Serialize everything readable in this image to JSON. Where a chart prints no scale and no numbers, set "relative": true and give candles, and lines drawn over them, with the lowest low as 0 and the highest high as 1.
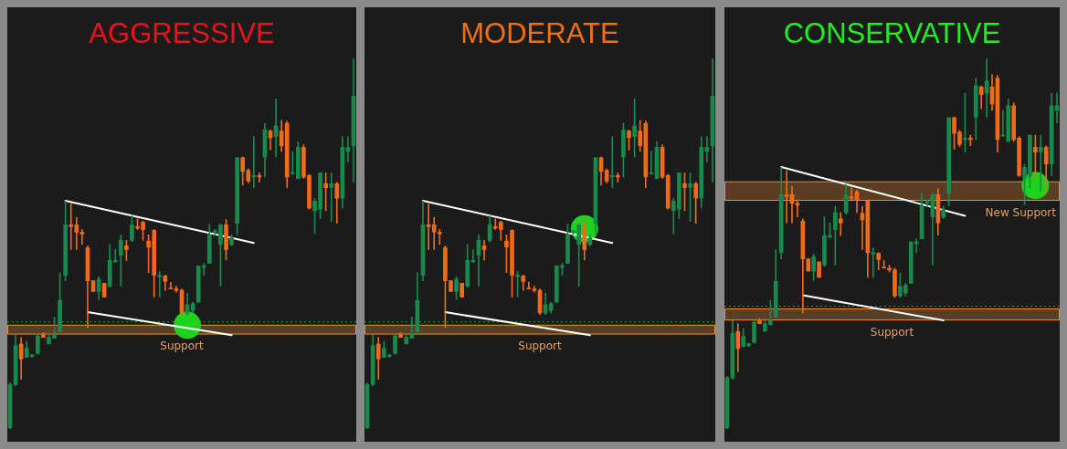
{
  "chart_data": [
    {
      "type": "candlestick",
      "title": "AGGRESSIVE",
      "relative": true,
      "tick_labels": false,
      "grid": false,
      "legend": false,
      "categories": [
        null,
        null,
        null,
        null,
        null,
        null,
        null,
        null,
        null,
        null,
        null,
        null,
        null,
        null,
        null,
        null,
        null,
        null,
        null,
        null,
        null,
        null,
        null,
        null,
        null,
        null,
        null,
        null,
        null,
        null,
        null,
        null,
        null,
        null,
        null,
        null,
        null,
        null,
        null,
        null,
        null,
        null,
        null,
        null,
        null,
        null,
        null,
        null,
        null,
        null,
        null,
        null,
        null,
        null,
        null,
        null,
        null,
        null,
        null,
        null,
        null,
        null,
        null
      ],
      "ohlc": [
        [
          0.003,
          0.124,
          0,
          0.12
        ],
        [
          0.12,
          0.254,
          0.116,
          0.225
        ],
        [
          0.229,
          0.247,
          0.134,
          0.189
        ],
        [
          0.193,
          0.236,
          0.193,
          0.218
        ],
        [
          0.196,
          0.201,
          0.193,
          0.2
        ],
        [
          0.204,
          0.254,
          0.201,
          0.251
        ],
        [
          0.254,
          0.26,
          0.247,
          0.247
        ],
        [
          0.23,
          0.254,
          0.229,
          0.247
        ],
        [
          0.245,
          0.302,
          0.245,
          0.256
        ],
        [
          0.262,
          0.422,
          0.262,
          0.347
        ],
        [
          0.415,
          0.615,
          0.4,
          0.551
        ],
        [
          0.551,
          0.607,
          0.484,
          0.546
        ],
        [
          0.551,
          0.571,
          0.484,
          0.531
        ],
        [
          0.531,
          0.538,
          0.498,
          0.526
        ],
        [
          0.489,
          0.494,
          0.273,
          0.4
        ],
        [
          0.4,
          0.4,
          0.371,
          0.371
        ],
        [
          0.371,
          0.411,
          0.349,
          0.404
        ],
        [
          0.393,
          0.393,
          0.356,
          0.356
        ],
        [
          0.385,
          0.498,
          0.382,
          0.455
        ],
        [
          0.451,
          0.484,
          0.449,
          0.455
        ],
        [
          0.469,
          0.524,
          0.385,
          0.509
        ],
        [
          0.494,
          0.509,
          0.455,
          0.484
        ],
        [
          0.509,
          0.575,
          0.505,
          0.551
        ],
        [
          0.546,
          0.567,
          0.538,
          0.542
        ],
        [
          0.558,
          0.561,
          0.509,
          0.538
        ],
        [
          0.507,
          0.524,
          0.422,
          0.491
        ],
        [
          0.536,
          0.538,
          0.356,
          0.415
        ],
        [
          0.411,
          0.425,
          0.356,
          0.415
        ],
        [
          0.413,
          0.415,
          0.374,
          0.398
        ],
        [
          0.38,
          0.396,
          0.378,
          0.378
        ],
        [
          0.378,
          0.385,
          0.369,
          0.374
        ],
        [
          0.374,
          0.378,
          0.309,
          0.313
        ],
        [
          0.313,
          0.367,
          0.309,
          0.335
        ],
        [
          0.32,
          0.342,
          0.313,
          0.338
        ],
        [
          0.342,
          0.44,
          0.342,
          0.44
        ],
        [
          0.436,
          0.447,
          0.415,
          0.44
        ],
        [
          0.447,
          0.553,
          0.447,
          0.524
        ],
        [
          0.531,
          0.538,
          0.524,
          0.535
        ],
        [
          0.498,
          0.553,
          0.385,
          0.551
        ],
        [
          0.551,
          0.565,
          0.456,
          0.484
        ],
        [
          0.498,
          0.524,
          0.494,
          0.516
        ],
        [
          0.555,
          0.732,
          0.524,
          0.732
        ],
        [
          0.732,
          0.734,
          0.658,
          0.695
        ],
        [
          0.698,
          0.702,
          0.664,
          0.669
        ],
        [
          0.68,
          0.789,
          0.651,
          0.684
        ],
        [
          0.684,
          0.691,
          0.666,
          0.68
        ],
        [
          0.734,
          0.825,
          0.68,
          0.807
        ],
        [
          0.804,
          0.807,
          0.753,
          0.786
        ],
        [
          0.789,
          0.891,
          0.734,
          0.818
        ],
        [
          0.804,
          0.833,
          0.749,
          0.764
        ],
        [
          0.825,
          0.831,
          0.651,
          0.68
        ],
        [
          0.689,
          0.749,
          0.687,
          0.691
        ],
        [
          0.676,
          0.775,
          0.676,
          0.76
        ],
        [
          0.76,
          0.767,
          0.676,
          0.68
        ],
        [
          0.684,
          0.687,
          0.593,
          0.596
        ],
        [
          0.589,
          0.622,
          0.527,
          0.615
        ],
        [
          0.593,
          0.691,
          0.567,
          0.691
        ],
        [
          0.662,
          0.691,
          0.589,
          0.651
        ],
        [
          0.652,
          0.691,
          0.56,
          0.662
        ],
        [
          0.662,
          0.666,
          0.555,
          0.623
        ],
        [
          0.623,
          0.789,
          0.596,
          0.76
        ],
        [
          0.749,
          0.789,
          0.72,
          0.76
        ],
        [
          0.764,
          1,
          0.666,
          0.898
        ]
      ],
      "colors": [
        "#178a4c",
        "#178a4c",
        "#f06a1a",
        "#178a4c",
        "#178a4c",
        "#178a4c",
        "#f06a1a",
        "#178a4c",
        "#178a4c",
        "#178a4c",
        "#178a4c",
        "#f06a1a",
        "#f06a1a",
        "#f06a1a",
        "#f06a1a",
        "#f06a1a",
        "#178a4c",
        "#f06a1a",
        "#178a4c",
        "#178a4c",
        "#178a4c",
        "#f06a1a",
        "#178a4c",
        "#f06a1a",
        "#f06a1a",
        "#f06a1a",
        "#f06a1a",
        "#178a4c",
        "#f06a1a",
        "#f06a1a",
        "#f06a1a",
        "#f06a1a",
        "#178a4c",
        "#178a4c",
        "#178a4c",
        "#178a4c",
        "#178a4c",
        "#178a4c",
        "#178a4c",
        "#f06a1a",
        "#178a4c",
        "#178a4c",
        "#f06a1a",
        "#f06a1a",
        "#178a4c",
        "#f06a1a",
        "#178a4c",
        "#f06a1a",
        "#178a4c",
        "#f06a1a",
        "#f06a1a",
        "#178a4c",
        "#178a4c",
        "#f06a1a",
        "#f06a1a",
        "#178a4c",
        "#178a4c",
        "#f06a1a",
        "#178a4c",
        "#f06a1a",
        "#178a4c",
        "#178a4c",
        "#178a4c"
      ],
      "series": [
        {
          "type": "line",
          "color": "#ffffff",
          "marker": "none",
          "values": [
            null,
            null,
            null,
            null,
            null,
            null,
            null,
            null,
            null,
            null,
            0.616,
            null,
            null,
            null,
            null,
            null,
            null,
            null,
            null,
            null,
            null,
            null,
            null,
            null,
            null,
            null,
            null,
            null,
            null,
            null,
            null,
            null,
            null,
            null,
            null,
            null,
            null,
            null,
            null,
            null,
            null,
            null,
            null,
            null,
            0.502,
            null,
            null,
            null,
            null,
            null,
            null,
            null,
            null,
            null,
            null,
            null,
            null,
            null,
            null,
            null,
            null,
            null,
            null
          ]
        },
        {
          "type": "line",
          "color": "#ffffff",
          "marker": "none",
          "values": [
            null,
            null,
            null,
            null,
            null,
            null,
            null,
            null,
            null,
            null,
            null,
            null,
            null,
            null,
            0.315,
            null,
            null,
            null,
            null,
            null,
            null,
            null,
            null,
            null,
            null,
            null,
            null,
            null,
            null,
            null,
            null,
            null,
            null,
            null,
            null,
            null,
            null,
            null,
            null,
            null,
            0.253,
            null,
            null,
            null,
            null,
            null,
            null,
            null,
            null,
            null,
            null,
            null,
            null,
            null,
            null,
            null,
            null,
            null,
            null,
            null,
            null,
            null,
            null
          ]
        },
        {
          "type": "scatter",
          "color": "#1fd21f",
          "marker": "circle",
          "values": [
            null,
            null,
            null,
            null,
            null,
            null,
            null,
            null,
            null,
            null,
            null,
            null,
            null,
            null,
            null,
            null,
            null,
            null,
            null,
            null,
            null,
            null,
            null,
            null,
            null,
            null,
            null,
            null,
            null,
            null,
            null,
            null,
            0.28,
            null,
            null,
            null,
            null,
            null,
            null,
            null,
            null,
            null,
            null,
            null,
            null,
            null,
            null,
            null,
            null,
            null,
            null,
            null,
            null,
            null,
            null,
            null,
            null,
            null,
            null,
            null,
            null,
            null,
            null
          ]
        }
      ],
      "bands": [
        {
          "axis": "y",
          "from": 0.256,
          "to": 0.28,
          "color": "#5a3d22",
          "label": "Support"
        }
      ],
      "ref_lines": [
        {
          "axis": "y",
          "value": 0.289,
          "color": "#1f9a55",
          "line_style": "dotted"
        }
      ]
    },
    {
      "type": "candlestick",
      "title": "MODERATE",
      "relative": true,
      "tick_labels": false,
      "grid": false,
      "legend": false,
      "categories": [
        null,
        null,
        null,
        null,
        null,
        null,
        null,
        null,
        null,
        null,
        null,
        null,
        null,
        null,
        null,
        null,
        null,
        null,
        null,
        null,
        null,
        null,
        null,
        null,
        null,
        null,
        null,
        null,
        null,
        null,
        null,
        null,
        null,
        null,
        null,
        null,
        null,
        null,
        null,
        null,
        null,
        null,
        null,
        null,
        null,
        null,
        null,
        null,
        null,
        null,
        null,
        null,
        null,
        null,
        null,
        null,
        null,
        null,
        null,
        null,
        null,
        null,
        null
      ],
      "ohlc": [
        [
          0.003,
          0.124,
          0,
          0.12
        ],
        [
          0.12,
          0.254,
          0.116,
          0.225
        ],
        [
          0.229,
          0.247,
          0.134,
          0.189
        ],
        [
          0.193,
          0.236,
          0.193,
          0.218
        ],
        [
          0.196,
          0.201,
          0.193,
          0.2
        ],
        [
          0.204,
          0.254,
          0.201,
          0.251
        ],
        [
          0.254,
          0.26,
          0.247,
          0.247
        ],
        [
          0.23,
          0.254,
          0.229,
          0.247
        ],
        [
          0.245,
          0.302,
          0.245,
          0.256
        ],
        [
          0.262,
          0.422,
          0.262,
          0.347
        ],
        [
          0.415,
          0.615,
          0.4,
          0.551
        ],
        [
          0.551,
          0.607,
          0.484,
          0.546
        ],
        [
          0.551,
          0.571,
          0.484,
          0.531
        ],
        [
          0.531,
          0.538,
          0.498,
          0.526
        ],
        [
          0.489,
          0.494,
          0.273,
          0.4
        ],
        [
          0.4,
          0.4,
          0.371,
          0.371
        ],
        [
          0.371,
          0.411,
          0.349,
          0.404
        ],
        [
          0.393,
          0.393,
          0.356,
          0.356
        ],
        [
          0.385,
          0.498,
          0.382,
          0.455
        ],
        [
          0.451,
          0.484,
          0.449,
          0.455
        ],
        [
          0.469,
          0.524,
          0.385,
          0.509
        ],
        [
          0.494,
          0.509,
          0.455,
          0.484
        ],
        [
          0.509,
          0.575,
          0.505,
          0.551
        ],
        [
          0.546,
          0.567,
          0.538,
          0.542
        ],
        [
          0.558,
          0.561,
          0.509,
          0.538
        ],
        [
          0.507,
          0.524,
          0.422,
          0.491
        ],
        [
          0.536,
          0.538,
          0.356,
          0.415
        ],
        [
          0.411,
          0.425,
          0.356,
          0.415
        ],
        [
          0.413,
          0.415,
          0.374,
          0.398
        ],
        [
          0.38,
          0.396,
          0.378,
          0.378
        ],
        [
          0.378,
          0.385,
          0.369,
          0.374
        ],
        [
          0.374,
          0.378,
          0.309,
          0.313
        ],
        [
          0.313,
          0.367,
          0.309,
          0.335
        ],
        [
          0.32,
          0.342,
          0.313,
          0.338
        ],
        [
          0.342,
          0.44,
          0.342,
          0.44
        ],
        [
          0.436,
          0.447,
          0.415,
          0.44
        ],
        [
          0.447,
          0.553,
          0.447,
          0.524
        ],
        [
          0.531,
          0.538,
          0.524,
          0.535
        ],
        [
          0.498,
          0.553,
          0.385,
          0.551
        ],
        [
          0.551,
          0.565,
          0.456,
          0.484
        ],
        [
          0.498,
          0.524,
          0.494,
          0.516
        ],
        [
          0.555,
          0.732,
          0.524,
          0.732
        ],
        [
          0.732,
          0.734,
          0.658,
          0.695
        ],
        [
          0.698,
          0.702,
          0.664,
          0.669
        ],
        [
          0.68,
          0.789,
          0.651,
          0.684
        ],
        [
          0.684,
          0.691,
          0.666,
          0.68
        ],
        [
          0.734,
          0.825,
          0.68,
          0.807
        ],
        [
          0.804,
          0.807,
          0.753,
          0.786
        ],
        [
          0.789,
          0.891,
          0.734,
          0.818
        ],
        [
          0.804,
          0.833,
          0.749,
          0.764
        ],
        [
          0.825,
          0.831,
          0.651,
          0.68
        ],
        [
          0.689,
          0.749,
          0.687,
          0.691
        ],
        [
          0.676,
          0.775,
          0.676,
          0.76
        ],
        [
          0.76,
          0.767,
          0.676,
          0.68
        ],
        [
          0.684,
          0.687,
          0.593,
          0.596
        ],
        [
          0.589,
          0.622,
          0.527,
          0.615
        ],
        [
          0.593,
          0.691,
          0.567,
          0.691
        ],
        [
          0.662,
          0.691,
          0.589,
          0.651
        ],
        [
          0.652,
          0.691,
          0.56,
          0.662
        ],
        [
          0.662,
          0.666,
          0.555,
          0.623
        ],
        [
          0.623,
          0.789,
          0.596,
          0.76
        ],
        [
          0.749,
          0.789,
          0.72,
          0.76
        ],
        [
          0.764,
          1,
          0.666,
          0.898
        ]
      ],
      "colors": [
        "#178a4c",
        "#178a4c",
        "#f06a1a",
        "#178a4c",
        "#178a4c",
        "#178a4c",
        "#f06a1a",
        "#178a4c",
        "#178a4c",
        "#178a4c",
        "#178a4c",
        "#f06a1a",
        "#f06a1a",
        "#f06a1a",
        "#f06a1a",
        "#f06a1a",
        "#178a4c",
        "#f06a1a",
        "#178a4c",
        "#178a4c",
        "#178a4c",
        "#f06a1a",
        "#178a4c",
        "#f06a1a",
        "#f06a1a",
        "#f06a1a",
        "#f06a1a",
        "#178a4c",
        "#f06a1a",
        "#f06a1a",
        "#f06a1a",
        "#f06a1a",
        "#178a4c",
        "#178a4c",
        "#178a4c",
        "#178a4c",
        "#178a4c",
        "#178a4c",
        "#178a4c",
        "#f06a1a",
        "#178a4c",
        "#178a4c",
        "#f06a1a",
        "#f06a1a",
        "#178a4c",
        "#f06a1a",
        "#178a4c",
        "#f06a1a",
        "#178a4c",
        "#f06a1a",
        "#f06a1a",
        "#178a4c",
        "#178a4c",
        "#f06a1a",
        "#f06a1a",
        "#178a4c",
        "#178a4c",
        "#f06a1a",
        "#178a4c",
        "#f06a1a",
        "#178a4c",
        "#178a4c",
        "#178a4c"
      ],
      "series": [
        {
          "type": "line",
          "color": "#ffffff",
          "marker": "none",
          "values": [
            null,
            null,
            null,
            null,
            null,
            null,
            null,
            null,
            null,
            null,
            0.616,
            null,
            null,
            null,
            null,
            null,
            null,
            null,
            null,
            null,
            null,
            null,
            null,
            null,
            null,
            null,
            null,
            null,
            null,
            null,
            null,
            null,
            null,
            null,
            null,
            null,
            null,
            null,
            null,
            null,
            null,
            null,
            null,
            null,
            0.502,
            null,
            null,
            null,
            null,
            null,
            null,
            null,
            null,
            null,
            null,
            null,
            null,
            null,
            null,
            null,
            null,
            null,
            null
          ]
        },
        {
          "type": "line",
          "color": "#ffffff",
          "marker": "none",
          "values": [
            null,
            null,
            null,
            null,
            null,
            null,
            null,
            null,
            null,
            null,
            null,
            null,
            null,
            null,
            0.315,
            null,
            null,
            null,
            null,
            null,
            null,
            null,
            null,
            null,
            null,
            null,
            null,
            null,
            null,
            null,
            null,
            null,
            null,
            null,
            null,
            null,
            null,
            null,
            null,
            null,
            0.253,
            null,
            null,
            null,
            null,
            null,
            null,
            null,
            null,
            null,
            null,
            null,
            null,
            null,
            null,
            null,
            null,
            null,
            null,
            null,
            null,
            null,
            null
          ]
        },
        {
          "type": "scatter",
          "color": "#1fd21f",
          "marker": "circle",
          "values": [
            null,
            null,
            null,
            null,
            null,
            null,
            null,
            null,
            null,
            null,
            null,
            null,
            null,
            null,
            null,
            null,
            null,
            null,
            null,
            null,
            null,
            null,
            null,
            null,
            null,
            null,
            null,
            null,
            null,
            null,
            null,
            null,
            null,
            null,
            null,
            null,
            null,
            null,
            null,
            0.54,
            null,
            null,
            null,
            null,
            null,
            null,
            null,
            null,
            null,
            null,
            null,
            null,
            null,
            null,
            null,
            null,
            null,
            null,
            null,
            null,
            null,
            null,
            null
          ]
        }
      ],
      "bands": [
        {
          "axis": "y",
          "from": 0.256,
          "to": 0.28,
          "color": "#5a3d22",
          "label": "Support"
        }
      ],
      "ref_lines": [
        {
          "axis": "y",
          "value": 0.289,
          "color": "#1f9a55",
          "line_style": "dotted"
        }
      ]
    },
    {
      "type": "candlestick",
      "title": "CONSERVATIVE",
      "relative": true,
      "tick_labels": false,
      "grid": false,
      "legend": false,
      "categories": [
        null,
        null,
        null,
        null,
        null,
        null,
        null,
        null,
        null,
        null,
        null,
        null,
        null,
        null,
        null,
        null,
        null,
        null,
        null,
        null,
        null,
        null,
        null,
        null,
        null,
        null,
        null,
        null,
        null,
        null,
        null,
        null,
        null,
        null,
        null,
        null,
        null,
        null,
        null,
        null,
        null,
        null,
        null,
        null,
        null,
        null,
        null,
        null,
        null,
        null,
        null,
        null,
        null,
        null,
        null,
        null,
        null,
        null,
        null,
        null,
        null,
        null
      ],
      "ohlc": [
        [
          0.003,
          0.142,
          0,
          0.138
        ],
        [
          0.138,
          0.292,
          0.133,
          0.258
        ],
        [
          0.263,
          0.284,
          0.154,
          0.217
        ],
        [
          0.222,
          0.271,
          0.222,
          0.25
        ],
        [
          0.225,
          0.231,
          0.222,
          0.23
        ],
        [
          0.234,
          0.292,
          0.231,
          0.288
        ],
        [
          0.292,
          0.298,
          0.284,
          0.284
        ],
        [
          0.264,
          0.292,
          0.263,
          0.284
        ],
        [
          0.281,
          0.347,
          0.281,
          0.294
        ],
        [
          0.301,
          0.484,
          0.301,
          0.398
        ],
        [
          0.476,
          0.706,
          0.459,
          0.632
        ],
        [
          0.632,
          0.697,
          0.556,
          0.627
        ],
        [
          0.632,
          0.655,
          0.556,
          0.609
        ],
        [
          0.609,
          0.618,
          0.572,
          0.604
        ],
        [
          0.561,
          0.567,
          0.313,
          0.459
        ],
        [
          0.459,
          0.459,
          0.426,
          0.426
        ],
        [
          0.426,
          0.472,
          0.401,
          0.464
        ],
        [
          0.451,
          0.451,
          0.409,
          0.409
        ],
        [
          0.442,
          0.572,
          0.438,
          0.522
        ],
        [
          0.518,
          0.556,
          0.515,
          0.522
        ],
        [
          0.538,
          0.601,
          0.442,
          0.584
        ],
        [
          0.567,
          0.584,
          0.522,
          0.556
        ],
        [
          0.584,
          0.66,
          0.58,
          0.632
        ],
        [
          0.627,
          0.651,
          0.618,
          0.622
        ],
        [
          0.64,
          0.644,
          0.584,
          0.618
        ],
        [
          0.582,
          0.601,
          0.484,
          0.564
        ],
        [
          0.615,
          0.618,
          0.409,
          0.476
        ],
        [
          0.472,
          0.488,
          0.409,
          0.476
        ],
        [
          0.474,
          0.476,
          0.429,
          0.457
        ],
        [
          0.436,
          0.455,
          0.434,
          0.434
        ],
        [
          0.434,
          0.442,
          0.424,
          0.429
        ],
        [
          0.429,
          0.434,
          0.355,
          0.359
        ],
        [
          0.359,
          0.421,
          0.355,
          0.385
        ],
        [
          0.367,
          0.393,
          0.359,
          0.388
        ],
        [
          0.393,
          0.505,
          0.393,
          0.505
        ],
        [
          0.5,
          0.513,
          0.476,
          0.505
        ],
        [
          0.513,
          0.635,
          0.513,
          0.601
        ],
        [
          0.609,
          0.618,
          0.601,
          0.614
        ],
        [
          0.572,
          0.635,
          0.442,
          0.632
        ],
        [
          0.632,
          0.649,
          0.523,
          0.556
        ],
        [
          0.572,
          0.601,
          0.567,
          0.592
        ],
        [
          0.637,
          0.84,
          0.601,
          0.84
        ],
        [
          0.84,
          0.842,
          0.755,
          0.798
        ],
        [
          0.801,
          0.806,
          0.762,
          0.768
        ],
        [
          0.781,
          0.906,
          0.747,
          0.785
        ],
        [
          0.785,
          0.793,
          0.764,
          0.781
        ],
        [
          0.842,
          0.947,
          0.781,
          0.926
        ],
        [
          0.923,
          0.926,
          0.864,
          0.902
        ],
        [
          0.906,
          1,
          0.842,
          0.939
        ],
        [
          0.923,
          0.956,
          0.86,
          0.877
        ],
        [
          0.947,
          0.954,
          0.747,
          0.781
        ],
        [
          0.791,
          0.86,
          0.789,
          0.793
        ],
        [
          0.776,
          0.89,
          0.776,
          0.872
        ],
        [
          0.872,
          0.88,
          0.776,
          0.781
        ],
        [
          0.785,
          0.789,
          0.681,
          0.684
        ],
        [
          0.676,
          0.714,
          0.605,
          0.706
        ],
        [
          0.681,
          0.793,
          0.651,
          0.793
        ],
        [
          0.76,
          0.793,
          0.676,
          0.747
        ],
        [
          0.748,
          0.793,
          0.643,
          0.76
        ],
        [
          0.76,
          0.764,
          0.637,
          0.715
        ],
        [
          0.715,
          0.906,
          0.684,
          0.872
        ],
        [
          0.86,
          0.906,
          0.826,
          0.872
        ]
      ],
      "colors": [
        "#178a4c",
        "#178a4c",
        "#f06a1a",
        "#178a4c",
        "#178a4c",
        "#178a4c",
        "#f06a1a",
        "#178a4c",
        "#178a4c",
        "#178a4c",
        "#178a4c",
        "#f06a1a",
        "#f06a1a",
        "#f06a1a",
        "#f06a1a",
        "#f06a1a",
        "#178a4c",
        "#f06a1a",
        "#178a4c",
        "#178a4c",
        "#178a4c",
        "#f06a1a",
        "#178a4c",
        "#f06a1a",
        "#f06a1a",
        "#f06a1a",
        "#f06a1a",
        "#178a4c",
        "#f06a1a",
        "#f06a1a",
        "#f06a1a",
        "#f06a1a",
        "#178a4c",
        "#178a4c",
        "#178a4c",
        "#178a4c",
        "#178a4c",
        "#178a4c",
        "#178a4c",
        "#f06a1a",
        "#178a4c",
        "#178a4c",
        "#f06a1a",
        "#f06a1a",
        "#178a4c",
        "#f06a1a",
        "#178a4c",
        "#f06a1a",
        "#178a4c",
        "#f06a1a",
        "#f06a1a",
        "#178a4c",
        "#178a4c",
        "#f06a1a",
        "#f06a1a",
        "#178a4c",
        "#178a4c",
        "#f06a1a",
        "#178a4c",
        "#f06a1a",
        "#178a4c",
        "#178a4c"
      ],
      "series": [
        {
          "type": "line",
          "color": "#ffffff",
          "marker": "none",
          "values": [
            null,
            null,
            null,
            null,
            null,
            null,
            null,
            null,
            null,
            null,
            0.707,
            null,
            null,
            null,
            null,
            null,
            null,
            null,
            null,
            null,
            null,
            null,
            null,
            null,
            null,
            null,
            null,
            null,
            null,
            null,
            null,
            null,
            null,
            null,
            null,
            null,
            null,
            null,
            null,
            null,
            null,
            null,
            null,
            null,
            0.575,
            null,
            null,
            null,
            null,
            null,
            null,
            null,
            null,
            null,
            null,
            null,
            null,
            null,
            null,
            null,
            null,
            null
          ]
        },
        {
          "type": "line",
          "color": "#ffffff",
          "marker": "none",
          "values": [
            null,
            null,
            null,
            null,
            null,
            null,
            null,
            null,
            null,
            null,
            null,
            null,
            null,
            null,
            0.361,
            null,
            null,
            null,
            null,
            null,
            null,
            null,
            null,
            null,
            null,
            null,
            null,
            null,
            null,
            null,
            null,
            null,
            null,
            null,
            null,
            null,
            null,
            null,
            null,
            null,
            0.293,
            null,
            null,
            null,
            null,
            null,
            null,
            null,
            null,
            null,
            null,
            null,
            null,
            null,
            null,
            null,
            null,
            null,
            null,
            null,
            null,
            null
          ]
        },
        {
          "type": "scatter",
          "color": "#1fd21f",
          "marker": "circle",
          "values": [
            null,
            null,
            null,
            null,
            null,
            null,
            null,
            null,
            null,
            null,
            null,
            null,
            null,
            null,
            null,
            null,
            null,
            null,
            null,
            null,
            null,
            null,
            null,
            null,
            null,
            null,
            null,
            null,
            null,
            null,
            null,
            null,
            null,
            null,
            null,
            null,
            null,
            null,
            null,
            null,
            null,
            null,
            null,
            null,
            null,
            null,
            null,
            null,
            null,
            null,
            null,
            null,
            null,
            null,
            null,
            null,
            null,
            0.657,
            null,
            null,
            null,
            null
          ]
        }
      ],
      "bands": [
        {
          "axis": "y",
          "from": 0.617,
          "to": 0.667,
          "color": "#5a3d22",
          "label": "New Support"
        },
        {
          "axis": "y",
          "from": 0.294,
          "to": 0.324,
          "color": "#5a3d22",
          "label": "Support"
        }
      ],
      "ref_lines": [
        {
          "axis": "y",
          "value": 0.331,
          "color": "#1f9a55",
          "line_style": "dotted"
        }
      ]
    }
  ]
}
